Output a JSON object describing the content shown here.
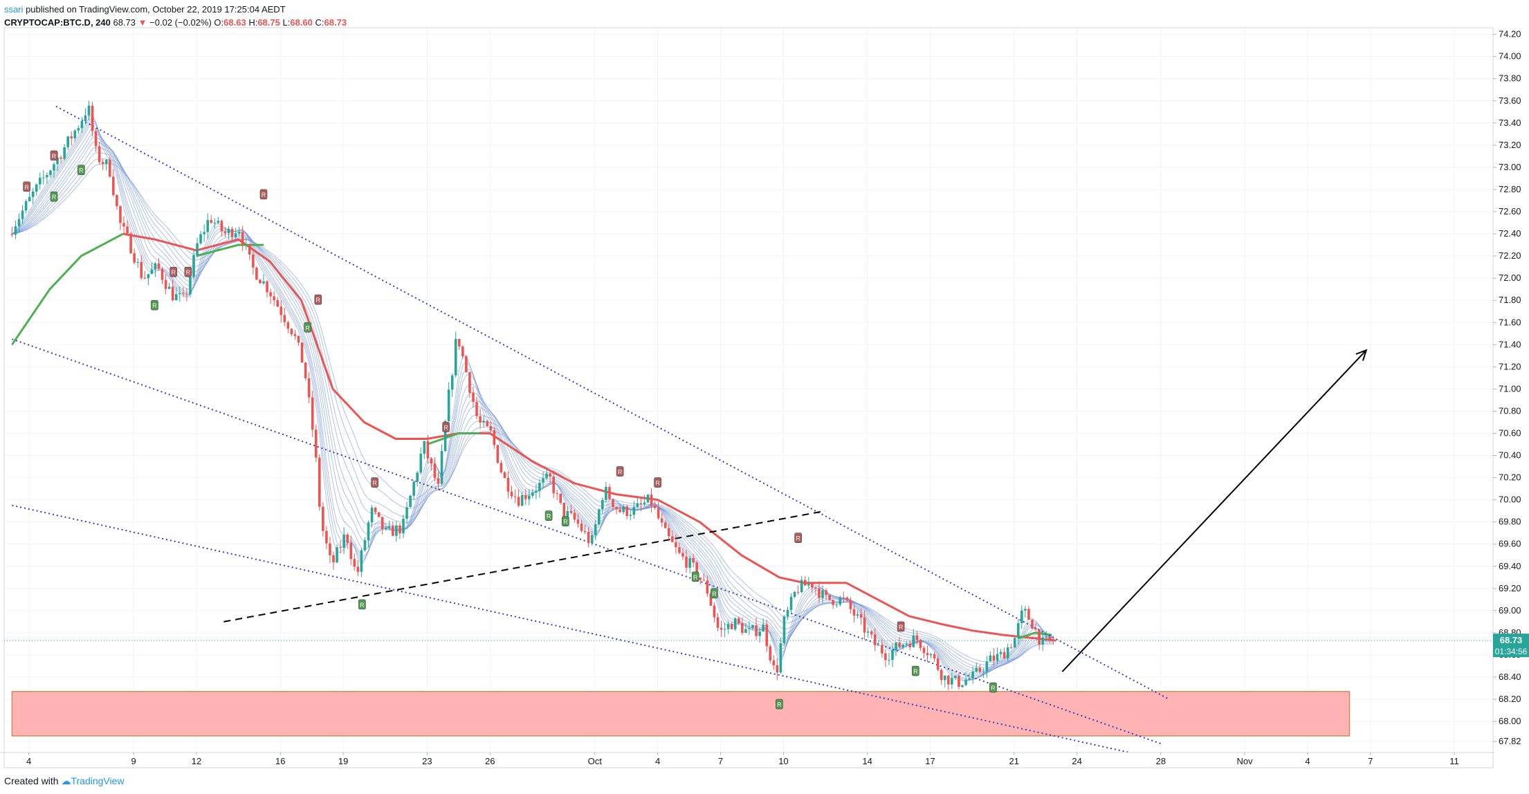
{
  "header": {
    "publisher_name": "ssari",
    "published_text": "published on TradingView.com, October 22, 2019 17:25:04 AEDT",
    "symbol": "CRYPTOCAP:BTC.D, 240",
    "last": "68.73",
    "change": "−0.02 (−0.02%)",
    "o_label": "O:",
    "o": "68.63",
    "h_label": "H:",
    "h": "68.75",
    "l_label": "L:",
    "l": "68.60",
    "c_label": "C:",
    "c": "68.73"
  },
  "footer": {
    "created_with": "Created with",
    "brand": "TradingView"
  },
  "colors": {
    "up": "#26a69a",
    "down": "#ef5350",
    "ema_red": "#ef5350",
    "ema_green": "#4caf50",
    "ribbon": "#6f8fd8",
    "channel": "#2f3cc9",
    "zone_fill": "#ffb3b3",
    "zone_border": "#d08a5a"
  },
  "chart_data": {
    "type": "candlestick",
    "symbol": "CRYPTOCAP:BTC.D",
    "interval": "240",
    "y_ticks": [
      "67.82",
      "68.00",
      "68.20",
      "68.40",
      "68.60",
      "68.80",
      "69.00",
      "69.20",
      "69.40",
      "69.60",
      "69.80",
      "70.00",
      "70.20",
      "70.40",
      "70.60",
      "70.80",
      "71.00",
      "71.20",
      "71.40",
      "71.60",
      "71.80",
      "72.00",
      "72.20",
      "72.40",
      "72.60",
      "72.80",
      "73.00",
      "73.20",
      "73.40",
      "73.60",
      "73.80",
      "74.00",
      "74.20"
    ],
    "ylim": [
      67.72,
      74.26
    ],
    "x_ticks": [
      "4",
      "9",
      "12",
      "16",
      "19",
      "23",
      "26",
      "Oct",
      "4",
      "7",
      "10",
      "14",
      "17",
      "21",
      "24",
      "28",
      "Nov",
      "4",
      "7",
      "11"
    ],
    "x_tick_days": [
      4,
      9,
      12,
      16,
      19,
      23,
      26,
      31,
      34,
      37,
      40,
      44,
      47,
      51,
      54,
      58,
      62,
      65,
      68,
      72
    ],
    "last_price_label": "68.73",
    "countdown_label": "01:34:56",
    "price_path": [
      [
        3.2,
        72.4
      ],
      [
        4.5,
        72.8
      ],
      [
        5.6,
        73.1
      ],
      [
        6.6,
        73.4
      ],
      [
        7.0,
        73.55
      ],
      [
        7.4,
        73.1
      ],
      [
        8.0,
        73.0
      ],
      [
        8.5,
        72.5
      ],
      [
        9.0,
        72.3
      ],
      [
        9.6,
        72.0
      ],
      [
        10.3,
        72.1
      ],
      [
        11.0,
        71.85
      ],
      [
        11.6,
        71.8
      ],
      [
        12.2,
        72.3
      ],
      [
        12.8,
        72.55
      ],
      [
        13.5,
        72.4
      ],
      [
        14.2,
        72.45
      ],
      [
        14.8,
        72.1
      ],
      [
        15.6,
        71.9
      ],
      [
        16.2,
        71.7
      ],
      [
        16.8,
        71.5
      ],
      [
        17.3,
        71.2
      ],
      [
        17.8,
        70.5
      ],
      [
        18.1,
        69.8
      ],
      [
        18.6,
        69.4
      ],
      [
        19.3,
        69.7
      ],
      [
        19.8,
        69.3
      ],
      [
        20.5,
        69.9
      ],
      [
        21.2,
        69.7
      ],
      [
        22.0,
        69.75
      ],
      [
        22.6,
        70.2
      ],
      [
        23.0,
        70.5
      ],
      [
        23.7,
        70.1
      ],
      [
        24.1,
        70.8
      ],
      [
        24.6,
        71.5
      ],
      [
        25.1,
        71.1
      ],
      [
        25.6,
        70.7
      ],
      [
        26.2,
        70.6
      ],
      [
        26.8,
        70.2
      ],
      [
        27.5,
        70.0
      ],
      [
        28.3,
        70.1
      ],
      [
        29.0,
        70.2
      ],
      [
        29.6,
        69.9
      ],
      [
        30.3,
        69.8
      ],
      [
        31.0,
        69.6
      ],
      [
        31.6,
        70.1
      ],
      [
        32.3,
        69.9
      ],
      [
        33.0,
        69.9
      ],
      [
        33.8,
        70.0
      ],
      [
        34.5,
        69.7
      ],
      [
        35.2,
        69.5
      ],
      [
        35.8,
        69.4
      ],
      [
        36.5,
        69.2
      ],
      [
        37.1,
        68.8
      ],
      [
        37.8,
        68.9
      ],
      [
        38.5,
        68.8
      ],
      [
        39.2,
        68.85
      ],
      [
        39.8,
        68.4
      ],
      [
        40.2,
        68.9
      ],
      [
        40.8,
        69.2
      ],
      [
        41.5,
        69.25
      ],
      [
        42.2,
        69.1
      ],
      [
        43.0,
        69.1
      ],
      [
        43.8,
        68.9
      ],
      [
        44.5,
        68.7
      ],
      [
        45.1,
        68.6
      ],
      [
        45.8,
        68.7
      ],
      [
        46.5,
        68.75
      ],
      [
        47.2,
        68.6
      ],
      [
        47.8,
        68.4
      ],
      [
        48.5,
        68.35
      ],
      [
        49.2,
        68.4
      ],
      [
        50.0,
        68.55
      ],
      [
        50.6,
        68.6
      ],
      [
        51.2,
        68.75
      ],
      [
        51.6,
        69.0
      ],
      [
        52.0,
        68.9
      ],
      [
        52.5,
        68.7
      ],
      [
        53.0,
        68.73
      ]
    ],
    "ema_red_path": [
      [
        8.5,
        72.4
      ],
      [
        10,
        72.35
      ],
      [
        12,
        72.25
      ],
      [
        14,
        72.35
      ],
      [
        15.5,
        72.15
      ],
      [
        17,
        71.8
      ],
      [
        18.5,
        71.0
      ],
      [
        20,
        70.7
      ],
      [
        21.5,
        70.55
      ],
      [
        23,
        70.55
      ],
      [
        24.5,
        70.6
      ],
      [
        26,
        70.6
      ],
      [
        28,
        70.35
      ],
      [
        30,
        70.15
      ],
      [
        32,
        70.05
      ],
      [
        34,
        70.0
      ],
      [
        36,
        69.8
      ],
      [
        38,
        69.5
      ],
      [
        39.8,
        69.3
      ],
      [
        41,
        69.25
      ],
      [
        43,
        69.25
      ],
      [
        44.5,
        69.1
      ],
      [
        46,
        68.95
      ],
      [
        47.5,
        68.88
      ],
      [
        49,
        68.82
      ],
      [
        50.5,
        68.78
      ],
      [
        52,
        68.75
      ],
      [
        53,
        68.73
      ]
    ],
    "ema_green_path": [
      [
        3.2,
        71.4
      ],
      [
        5,
        71.9
      ],
      [
        6.5,
        72.2
      ],
      [
        8,
        72.35
      ],
      [
        8.5,
        72.4
      ]
    ],
    "ema_green_path_2": [
      [
        12,
        72.2
      ],
      [
        14,
        72.3
      ],
      [
        15.2,
        72.3
      ]
    ],
    "ema_green_path_3": [
      [
        23,
        70.5
      ],
      [
        24.5,
        70.6
      ],
      [
        25.5,
        70.6
      ]
    ],
    "ema_green_path_4": [
      [
        51.2,
        68.75
      ],
      [
        52,
        68.8
      ],
      [
        52.8,
        68.78
      ]
    ],
    "channel_upper": [
      [
        5.3,
        73.55
      ],
      [
        58.4,
        68.2
      ]
    ],
    "channel_mid": [
      [
        3.2,
        71.45
      ],
      [
        58,
        67.8
      ]
    ],
    "channel_lower": [
      [
        3.2,
        69.95
      ],
      [
        56.5,
        67.72
      ]
    ],
    "dashed_line": [
      [
        13.3,
        68.9
      ],
      [
        42.0,
        69.9
      ]
    ],
    "arrow": [
      [
        53.3,
        68.45
      ],
      [
        67.8,
        71.35
      ]
    ],
    "demand_zone": {
      "x0": 3.2,
      "x1": 67.0,
      "y0": 67.87,
      "y1": 68.27
    },
    "pivot_high_markers": [
      [
        3.9,
        72.82
      ],
      [
        5.2,
        73.1
      ],
      [
        10.9,
        72.05
      ],
      [
        11.6,
        72.05
      ],
      [
        15.2,
        72.75
      ],
      [
        17.8,
        71.8
      ],
      [
        23.9,
        70.65
      ],
      [
        20.5,
        70.15
      ],
      [
        32.2,
        70.25
      ],
      [
        34.0,
        70.15
      ],
      [
        40.7,
        69.65
      ],
      [
        45.6,
        68.85
      ]
    ],
    "pivot_low_markers": [
      [
        5.2,
        72.73
      ],
      [
        6.5,
        72.97
      ],
      [
        10.0,
        71.75
      ],
      [
        17.3,
        71.55
      ],
      [
        19.9,
        69.05
      ],
      [
        28.8,
        69.85
      ],
      [
        29.6,
        69.8
      ],
      [
        35.8,
        69.3
      ],
      [
        36.7,
        69.15
      ],
      [
        39.8,
        68.15
      ],
      [
        46.3,
        68.45
      ],
      [
        50.0,
        68.3
      ]
    ]
  }
}
